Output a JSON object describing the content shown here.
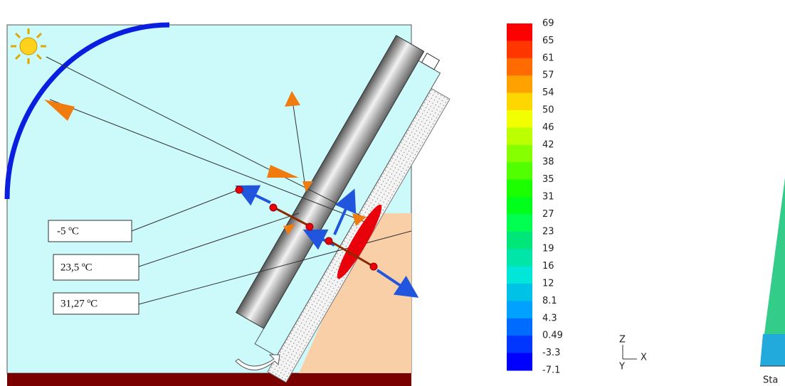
{
  "diagram": {
    "temperature_labels": [
      "-5 ºC",
      "23,5 ºC",
      "31,27 ºC"
    ]
  },
  "colorbar": {
    "labels": [
      "69",
      "65",
      "61",
      "57",
      "54",
      "50",
      "46",
      "42",
      "38",
      "35",
      "31",
      "27",
      "23",
      "19",
      "16",
      "12",
      "8.1",
      "4.3",
      "0.49",
      "-3.3",
      "-7.1"
    ]
  },
  "axes_triad": {
    "z": "Z",
    "y": "Y",
    "x": "X"
  },
  "caption_fragment": "Sta"
}
